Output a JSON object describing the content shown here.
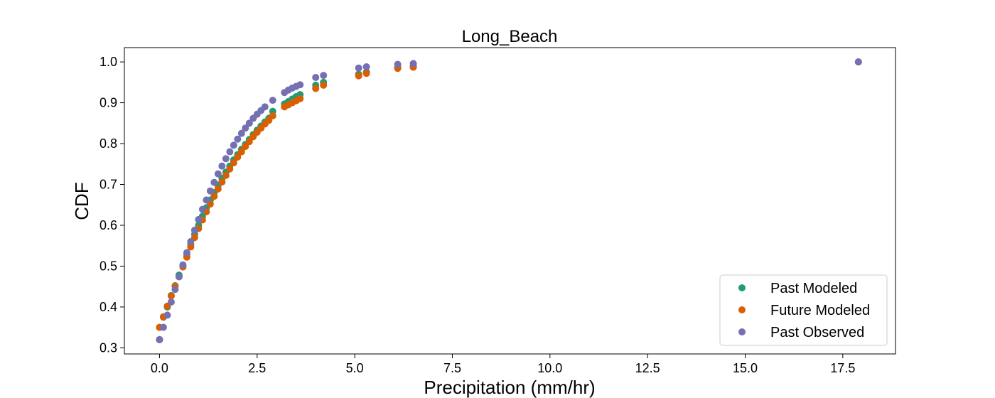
{
  "chart_data": {
    "type": "scatter",
    "title": "Long_Beach",
    "xlabel": "Precipitation (mm/hr)",
    "ylabel": "CDF",
    "xlim": [
      -0.9,
      18.85
    ],
    "ylim": [
      0.285,
      1.035
    ],
    "xticks": [
      0.0,
      2.5,
      5.0,
      7.5,
      10.0,
      12.5,
      15.0,
      17.5
    ],
    "xtick_labels": [
      "0.0",
      "2.5",
      "5.0",
      "7.5",
      "10.0",
      "12.5",
      "15.0",
      "17.5"
    ],
    "yticks": [
      0.3,
      0.4,
      0.5,
      0.6,
      0.7,
      0.8,
      0.9,
      1.0
    ],
    "ytick_labels": [
      "0.3",
      "0.4",
      "0.5",
      "0.6",
      "0.7",
      "0.8",
      "0.9",
      "1.0"
    ],
    "grid": false,
    "legend_position": "bottom-right",
    "series": [
      {
        "name": "Past Modeled",
        "color": "#1b9e77",
        "points": [
          [
            0.0,
            0.32
          ],
          [
            0.0,
            0.35
          ],
          [
            0.1,
            0.375
          ],
          [
            0.2,
            0.4
          ],
          [
            0.3,
            0.428
          ],
          [
            0.4,
            0.452
          ],
          [
            0.5,
            0.478
          ],
          [
            0.6,
            0.502
          ],
          [
            0.7,
            0.528
          ],
          [
            0.8,
            0.553
          ],
          [
            0.9,
            0.578
          ],
          [
            1.0,
            0.6
          ],
          [
            1.1,
            0.622
          ],
          [
            1.2,
            0.643
          ],
          [
            1.3,
            0.662
          ],
          [
            1.4,
            0.68
          ],
          [
            1.5,
            0.698
          ],
          [
            1.6,
            0.715
          ],
          [
            1.7,
            0.73
          ],
          [
            1.8,
            0.745
          ],
          [
            1.9,
            0.76
          ],
          [
            2.0,
            0.773
          ],
          [
            2.1,
            0.786
          ],
          [
            2.2,
            0.798
          ],
          [
            2.3,
            0.81
          ],
          [
            2.4,
            0.822
          ],
          [
            2.5,
            0.833
          ],
          [
            2.6,
            0.843
          ],
          [
            2.7,
            0.853
          ],
          [
            2.8,
            0.862
          ],
          [
            2.9,
            0.879
          ],
          [
            3.2,
            0.897
          ],
          [
            3.3,
            0.903
          ],
          [
            3.4,
            0.909
          ],
          [
            3.5,
            0.915
          ],
          [
            3.6,
            0.92
          ],
          [
            4.0,
            0.943
          ],
          [
            4.2,
            0.95
          ],
          [
            5.1,
            0.97
          ],
          [
            5.3,
            0.975
          ],
          [
            6.1,
            0.987
          ],
          [
            6.5,
            0.99
          ],
          [
            17.9,
            1.0
          ]
        ]
      },
      {
        "name": "Future Modeled",
        "color": "#d95f02",
        "points": [
          [
            0.0,
            0.32
          ],
          [
            0.0,
            0.35
          ],
          [
            0.1,
            0.376
          ],
          [
            0.2,
            0.402
          ],
          [
            0.3,
            0.427
          ],
          [
            0.4,
            0.451
          ],
          [
            0.5,
            0.474
          ],
          [
            0.6,
            0.498
          ],
          [
            0.7,
            0.522
          ],
          [
            0.8,
            0.547
          ],
          [
            0.9,
            0.57
          ],
          [
            1.0,
            0.592
          ],
          [
            1.1,
            0.613
          ],
          [
            1.2,
            0.633
          ],
          [
            1.3,
            0.652
          ],
          [
            1.4,
            0.671
          ],
          [
            1.5,
            0.689
          ],
          [
            1.6,
            0.706
          ],
          [
            1.7,
            0.722
          ],
          [
            1.8,
            0.738
          ],
          [
            1.9,
            0.753
          ],
          [
            2.0,
            0.767
          ],
          [
            2.1,
            0.78
          ],
          [
            2.2,
            0.793
          ],
          [
            2.3,
            0.805
          ],
          [
            2.4,
            0.817
          ],
          [
            2.5,
            0.828
          ],
          [
            2.6,
            0.838
          ],
          [
            2.7,
            0.848
          ],
          [
            2.8,
            0.857
          ],
          [
            2.9,
            0.868
          ],
          [
            3.2,
            0.89
          ],
          [
            3.3,
            0.895
          ],
          [
            3.4,
            0.9
          ],
          [
            3.5,
            0.905
          ],
          [
            3.6,
            0.91
          ],
          [
            4.0,
            0.935
          ],
          [
            4.2,
            0.943
          ],
          [
            5.1,
            0.966
          ],
          [
            5.3,
            0.972
          ],
          [
            6.1,
            0.984
          ],
          [
            6.5,
            0.987
          ],
          [
            17.9,
            1.0
          ]
        ]
      },
      {
        "name": "Past Observed",
        "color": "#7570b3",
        "points": [
          [
            0.0,
            0.32
          ],
          [
            0.1,
            0.35
          ],
          [
            0.2,
            0.38
          ],
          [
            0.3,
            0.412
          ],
          [
            0.4,
            0.443
          ],
          [
            0.5,
            0.474
          ],
          [
            0.6,
            0.503
          ],
          [
            0.7,
            0.533
          ],
          [
            0.8,
            0.56
          ],
          [
            0.9,
            0.588
          ],
          [
            1.0,
            0.614
          ],
          [
            1.1,
            0.639
          ],
          [
            1.2,
            0.662
          ],
          [
            1.3,
            0.684
          ],
          [
            1.4,
            0.705
          ],
          [
            1.5,
            0.726
          ],
          [
            1.6,
            0.745
          ],
          [
            1.7,
            0.763
          ],
          [
            1.8,
            0.78
          ],
          [
            1.9,
            0.796
          ],
          [
            2.0,
            0.811
          ],
          [
            2.1,
            0.825
          ],
          [
            2.2,
            0.838
          ],
          [
            2.3,
            0.85
          ],
          [
            2.4,
            0.862
          ],
          [
            2.5,
            0.872
          ],
          [
            2.6,
            0.881
          ],
          [
            2.7,
            0.89
          ],
          [
            2.9,
            0.906
          ],
          [
            3.2,
            0.925
          ],
          [
            3.3,
            0.931
          ],
          [
            3.4,
            0.936
          ],
          [
            3.5,
            0.94
          ],
          [
            3.6,
            0.944
          ],
          [
            4.0,
            0.962
          ],
          [
            4.2,
            0.967
          ],
          [
            5.1,
            0.985
          ],
          [
            5.3,
            0.988
          ],
          [
            6.1,
            0.994
          ],
          [
            6.5,
            0.996
          ],
          [
            17.9,
            1.0
          ]
        ]
      }
    ]
  }
}
